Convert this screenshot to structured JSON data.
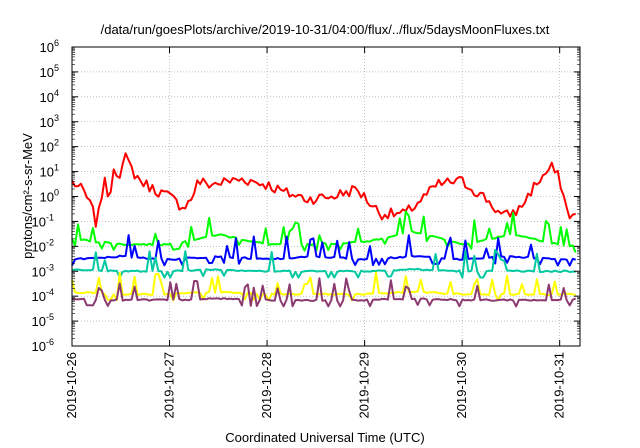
{
  "chart_data": {
    "type": "line",
    "title": "/data/run/goesPlots/archive/2019-10-31/04:00/flux/../flux/5daysMoonFluxes.txt",
    "xlabel": "Coordinated Universal Time (UTC)",
    "ylabel": "protons/cm²-s-sr-MeV",
    "y_scale": "log",
    "ylim": [
      1e-06,
      1000000.0
    ],
    "xlim": [
      "2019-10-26T00:00",
      "2019-10-31T05:00"
    ],
    "grid": true,
    "x_ticks": [
      "2019-10-26",
      "2019-10-27",
      "2019-10-28",
      "2019-10-29",
      "2019-10-30",
      "2019-10-31"
    ],
    "y_ticks": [
      {
        "base": "10",
        "exp": "-6"
      },
      {
        "base": "10",
        "exp": "-5"
      },
      {
        "base": "10",
        "exp": "-4"
      },
      {
        "base": "10",
        "exp": "-3"
      },
      {
        "base": "10",
        "exp": "-2"
      },
      {
        "base": "10",
        "exp": "-1"
      },
      {
        "base": "10",
        "exp": "0"
      },
      {
        "base": "10",
        "exp": "1"
      },
      {
        "base": "10",
        "exp": "2"
      },
      {
        "base": "10",
        "exp": "3"
      },
      {
        "base": "10",
        "exp": "4"
      },
      {
        "base": "10",
        "exp": "5"
      },
      {
        "base": "10",
        "exp": "6"
      }
    ],
    "series": [
      {
        "color": "#ff0000",
        "x": [
          "2019-10-26T00:00",
          "2019-10-26T03:00",
          "2019-10-26T05:00",
          "2019-10-26T06:00",
          "2019-10-26T07:00",
          "2019-10-26T08:00",
          "2019-10-26T09:00",
          "2019-10-26T10:00",
          "2019-10-26T12:00",
          "2019-10-26T13:00",
          "2019-10-26T15:00",
          "2019-10-26T17:00",
          "2019-10-26T20:00",
          "2019-10-27T00:00",
          "2019-10-27T03:00",
          "2019-10-27T05:00",
          "2019-10-27T07:00",
          "2019-10-27T10:00",
          "2019-10-27T14:00",
          "2019-10-27T18:00",
          "2019-10-28T00:00",
          "2019-10-28T04:00",
          "2019-10-28T10:00",
          "2019-10-28T16:00",
          "2019-10-28T22:00",
          "2019-10-29T04:00",
          "2019-10-29T10:00",
          "2019-10-29T16:00",
          "2019-10-29T18:00",
          "2019-10-29T22:00",
          "2019-10-30T00:00",
          "2019-10-30T06:00",
          "2019-10-30T10:00",
          "2019-10-30T14:00",
          "2019-10-30T18:00",
          "2019-10-30T22:00",
          "2019-10-31T00:00",
          "2019-10-31T02:00",
          "2019-10-31T04:00"
        ],
        "y": [
          4,
          1.5,
          0.3,
          0.08,
          0.4,
          10,
          0.3,
          15,
          8,
          40,
          10,
          4,
          2,
          1,
          0.4,
          0.6,
          4,
          3,
          4,
          5,
          3,
          1.5,
          0.8,
          1,
          2,
          0.2,
          0.2,
          1.5,
          3,
          4,
          4,
          0.8,
          0.15,
          0.3,
          3,
          15,
          5,
          0.2,
          0.15
        ]
      },
      {
        "color": "#00ff00",
        "x": [
          "2019-10-26T00:00",
          "2019-10-26T12:00",
          "2019-10-27T00:00",
          "2019-10-27T12:00",
          "2019-10-28T00:00",
          "2019-10-28T12:00",
          "2019-10-29T00:00",
          "2019-10-29T12:00",
          "2019-10-30T00:00",
          "2019-10-30T12:00",
          "2019-10-31T00:00",
          "2019-10-31T04:00"
        ],
        "y": [
          0.02,
          0.012,
          0.012,
          0.03,
          0.012,
          0.012,
          0.015,
          0.04,
          0.012,
          0.03,
          0.012,
          0.01
        ]
      },
      {
        "color": "#0000ff",
        "x": [
          "2019-10-26T00:00",
          "2019-10-26T12:00",
          "2019-10-27T00:00",
          "2019-10-27T12:00",
          "2019-10-28T00:00",
          "2019-10-28T12:00",
          "2019-10-29T00:00",
          "2019-10-29T12:00",
          "2019-10-30T00:00",
          "2019-10-30T12:00",
          "2019-10-31T00:00",
          "2019-10-31T04:00"
        ],
        "y": [
          0.003,
          0.004,
          0.003,
          0.004,
          0.003,
          0.004,
          0.003,
          0.004,
          0.003,
          0.004,
          0.003,
          0.003
        ]
      },
      {
        "color": "#00c8a0",
        "x": [
          "2019-10-26T00:00",
          "2019-10-26T12:00",
          "2019-10-27T00:00",
          "2019-10-27T12:00",
          "2019-10-28T00:00",
          "2019-10-28T12:00",
          "2019-10-29T00:00",
          "2019-10-29T12:00",
          "2019-10-30T00:00",
          "2019-10-30T12:00",
          "2019-10-31T00:00",
          "2019-10-31T04:00"
        ],
        "y": [
          0.0012,
          0.001,
          0.001,
          0.0012,
          0.001,
          0.001,
          0.001,
          0.0012,
          0.001,
          0.001,
          0.001,
          0.001
        ]
      },
      {
        "color": "#ffff00",
        "x": [
          "2019-10-26T00:00",
          "2019-10-26T12:00",
          "2019-10-27T00:00",
          "2019-10-27T12:00",
          "2019-10-28T00:00",
          "2019-10-28T12:00",
          "2019-10-29T00:00",
          "2019-10-29T12:00",
          "2019-10-30T00:00",
          "2019-10-30T12:00",
          "2019-10-31T00:00",
          "2019-10-31T04:00"
        ],
        "y": [
          0.00015,
          0.00012,
          0.00012,
          0.00015,
          0.00012,
          0.00012,
          0.00012,
          0.00015,
          0.00012,
          0.00012,
          0.00012,
          0.00012
        ]
      },
      {
        "color": "#8b3a70",
        "x": [
          "2019-10-26T00:00",
          "2019-10-26T12:00",
          "2019-10-27T00:00",
          "2019-10-27T12:00",
          "2019-10-28T00:00",
          "2019-10-28T12:00",
          "2019-10-29T00:00",
          "2019-10-29T12:00",
          "2019-10-30T00:00",
          "2019-10-30T12:00",
          "2019-10-31T00:00",
          "2019-10-31T04:00"
        ],
        "y": [
          8e-05,
          7e-05,
          7e-05,
          8e-05,
          7e-05,
          7e-05,
          7e-05,
          8e-05,
          7e-05,
          7e-05,
          7e-05,
          8e-05
        ]
      }
    ]
  }
}
